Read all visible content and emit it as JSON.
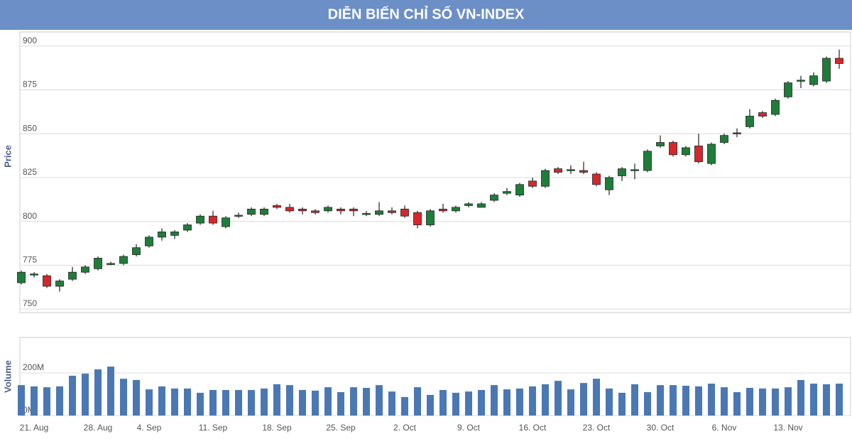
{
  "chart_data": {
    "type": "candlestick",
    "title": "DIỄN BIẾN CHỈ SỐ VN-INDEX",
    "ylabel": "Price",
    "categories": [
      null,
      "21. Aug",
      null,
      null,
      null,
      null,
      "28. Aug",
      null,
      null,
      null,
      "4. Sep",
      null,
      null,
      null,
      null,
      "11. Sep",
      null,
      null,
      null,
      null,
      "18. Sep",
      null,
      null,
      null,
      null,
      "25. Sep",
      null,
      null,
      null,
      null,
      "2. Oct",
      null,
      null,
      null,
      null,
      "9. Oct",
      null,
      null,
      null,
      null,
      "16. Oct",
      null,
      null,
      null,
      null,
      "23. Oct",
      null,
      null,
      null,
      null,
      "30. Oct",
      null,
      null,
      null,
      null,
      "6. Nov",
      null,
      null,
      null,
      null,
      "13. Nov",
      null,
      null,
      null,
      null
    ],
    "open": [
      765,
      769.5,
      769,
      763,
      767,
      771,
      773,
      775.5,
      776,
      781,
      786,
      791,
      792,
      795,
      799,
      803,
      797,
      803,
      804,
      804,
      809,
      808,
      807,
      806,
      806,
      807,
      807,
      804,
      804,
      806,
      807,
      805,
      798,
      807,
      806,
      809,
      808,
      812,
      816,
      815,
      823,
      820,
      830,
      829,
      829,
      827,
      818,
      826,
      829,
      829,
      843,
      845,
      838,
      843,
      833,
      845,
      850,
      854,
      862,
      861,
      871,
      880,
      878,
      880,
      893
    ],
    "high": [
      772,
      771,
      770,
      767,
      774,
      775,
      780,
      777,
      781,
      787,
      792,
      796,
      795,
      799,
      804,
      806,
      803,
      805,
      808,
      808,
      810,
      810,
      808,
      807,
      809,
      808,
      808,
      806,
      811,
      808,
      809,
      806,
      807,
      810,
      809,
      811,
      811,
      816,
      819,
      822,
      825,
      830,
      831,
      832,
      834,
      828,
      826,
      831,
      833,
      841,
      849,
      846,
      843,
      850,
      845,
      850,
      853,
      864,
      863,
      870,
      880,
      883,
      885,
      894,
      898
    ],
    "low": [
      764,
      768,
      762,
      760,
      766,
      770,
      772,
      775,
      775,
      780,
      785,
      789,
      790,
      794,
      798,
      798,
      796,
      802,
      803,
      803,
      807,
      805,
      804,
      804,
      805,
      804,
      803,
      803,
      803,
      804,
      802,
      796,
      797,
      805,
      805,
      808,
      808,
      811,
      815,
      814,
      819,
      819,
      827,
      827,
      827,
      820,
      815,
      823,
      824,
      828,
      842,
      837,
      837,
      833,
      832,
      844,
      848,
      853,
      859,
      860,
      870,
      876,
      877,
      879,
      887
    ],
    "close": [
      771,
      770,
      763,
      766,
      771,
      774,
      779,
      776,
      780,
      785,
      791,
      794,
      794,
      798,
      803,
      799,
      802,
      803.5,
      807,
      807,
      808,
      806,
      806,
      805,
      808,
      806,
      806,
      804.5,
      806,
      805,
      803,
      798,
      806,
      806,
      808,
      810,
      810,
      815,
      817,
      821,
      820,
      829,
      828,
      829.5,
      828,
      821,
      825,
      830,
      829.5,
      840,
      845,
      838,
      842,
      834,
      844,
      849,
      850.5,
      860,
      860,
      869,
      879,
      880.5,
      883,
      893,
      890
    ],
    "up_color": "#1f7d3a",
    "down_color": "#d8262b",
    "ylim": [
      748,
      908
    ],
    "yticks": [
      750,
      775,
      800,
      825,
      850,
      875,
      900
    ],
    "grid": true,
    "volume": {
      "ylabel": "Volume",
      "color": "#4a78b4",
      "values": [
        143,
        137,
        133,
        137,
        187,
        197,
        217,
        230,
        173,
        167,
        123,
        137,
        127,
        127,
        107,
        120,
        120,
        120,
        120,
        127,
        147,
        143,
        120,
        117,
        133,
        110,
        133,
        130,
        143,
        113,
        87,
        133,
        97,
        120,
        107,
        113,
        120,
        143,
        123,
        127,
        137,
        147,
        163,
        123,
        153,
        173,
        127,
        107,
        147,
        110,
        143,
        143,
        140,
        137,
        150,
        133,
        110,
        130,
        127,
        127,
        133,
        167,
        150,
        147,
        150
      ],
      "ylim": [
        0,
        367
      ],
      "yticks": [
        {
          "value": 0,
          "label": "0M"
        },
        {
          "value": 200,
          "label": "200M"
        }
      ]
    }
  }
}
